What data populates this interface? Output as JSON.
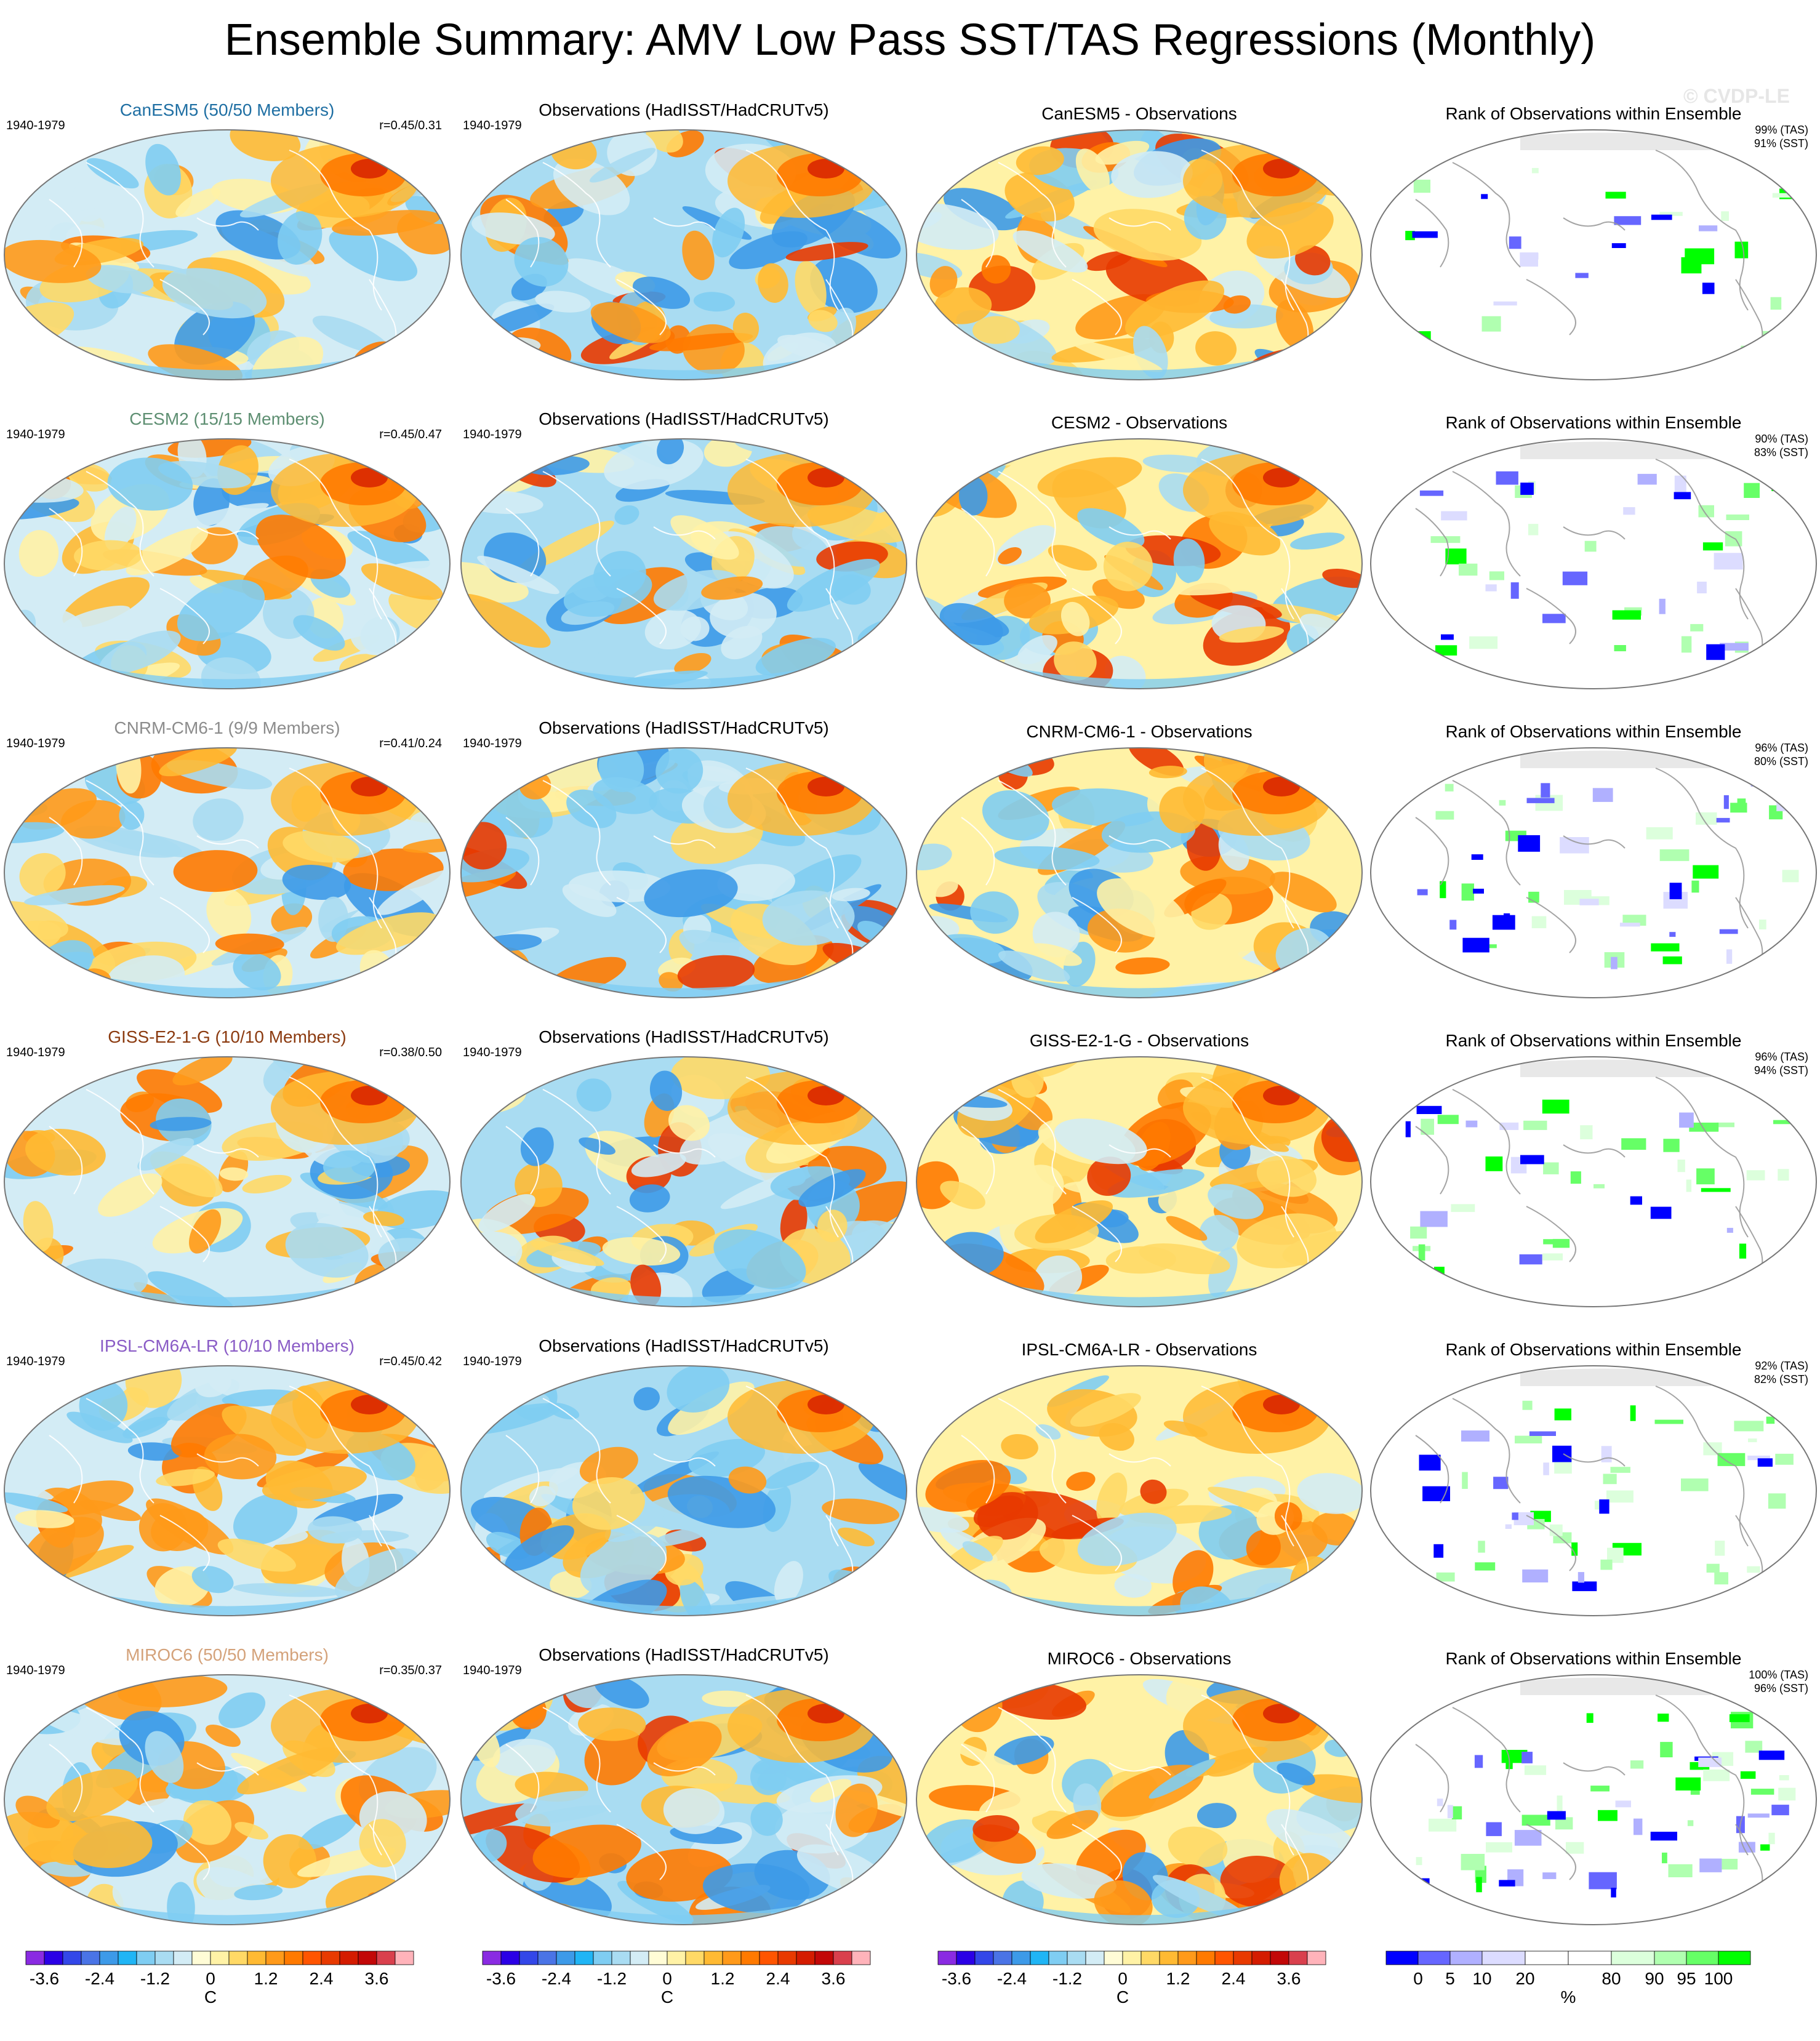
{
  "title": "Ensemble Summary: AMV Low Pass SST/TAS Regressions (Monthly)",
  "watermark": "© CVDP-LE",
  "obs_title": "Observations (HadISST/HadCRUTv5)",
  "rank_title": "Rank of Observations within Ensemble",
  "period": "1940-1979",
  "rows": [
    {
      "model_title": "CanESM5 (50/50 Members)",
      "model_color": "#1f6fa3",
      "corr": "r=0.45/0.31",
      "diff_title": "CanESM5 - Observations",
      "rank_tas": "99% (TAS)",
      "rank_sst": "91% (SST)"
    },
    {
      "model_title": "CESM2 (15/15 Members)",
      "model_color": "#5e8f72",
      "corr": "r=0.45/0.47",
      "diff_title": "CESM2 - Observations",
      "rank_tas": "90% (TAS)",
      "rank_sst": "83% (SST)"
    },
    {
      "model_title": "CNRM-CM6-1 (9/9 Members)",
      "model_color": "#8c8c8c",
      "corr": "r=0.41/0.24",
      "diff_title": "CNRM-CM6-1 - Observations",
      "rank_tas": "96% (TAS)",
      "rank_sst": "80% (SST)"
    },
    {
      "model_title": "GISS-E2-1-G (10/10 Members)",
      "model_color": "#8b3a0f",
      "corr": "r=0.38/0.50",
      "diff_title": "GISS-E2-1-G - Observations",
      "rank_tas": "96% (TAS)",
      "rank_sst": "94% (SST)"
    },
    {
      "model_title": "IPSL-CM6A-LR (10/10 Members)",
      "model_color": "#8a5cc6",
      "corr": "r=0.45/0.42",
      "diff_title": "IPSL-CM6A-LR - Observations",
      "rank_tas": "92% (TAS)",
      "rank_sst": "82% (SST)"
    },
    {
      "model_title": "MIROC6 (50/50 Members)",
      "model_color": "#d4a27a",
      "corr": "r=0.35/0.37",
      "diff_title": "MIROC6 - Observations",
      "rank_tas": "100% (TAS)",
      "rank_sst": "96% (SST)"
    }
  ],
  "colorbar_c": {
    "colors": [
      "#8a2be2",
      "#2b00e6",
      "#3347e8",
      "#4a74e6",
      "#3d9ae8",
      "#20b5f5",
      "#7fcdf2",
      "#a9dcf2",
      "#d3ecf5",
      "#fffcd6",
      "#fff2a6",
      "#ffd966",
      "#ffba33",
      "#ff9a1a",
      "#ff7a00",
      "#ff5500",
      "#e83a00",
      "#d41c00",
      "#c20808",
      "#d9404d",
      "#ffb3ba"
    ],
    "ticks": [
      "-3.6",
      "-2.4",
      "-1.2",
      "0",
      "1.2",
      "2.4",
      "3.6"
    ],
    "unit": "C"
  },
  "colorbar_rank": {
    "colors": [
      "#0000ff",
      "#6666ff",
      "#b0b0ff",
      "#dcdcff",
      "#ffffff",
      "#ffffff",
      "#dcffdc",
      "#b0ffb0",
      "#66ff66",
      "#00ff00"
    ],
    "ticks": [
      "0",
      "5",
      "10",
      "20",
      "80",
      "90",
      "95",
      "100"
    ],
    "unit": "%"
  }
}
